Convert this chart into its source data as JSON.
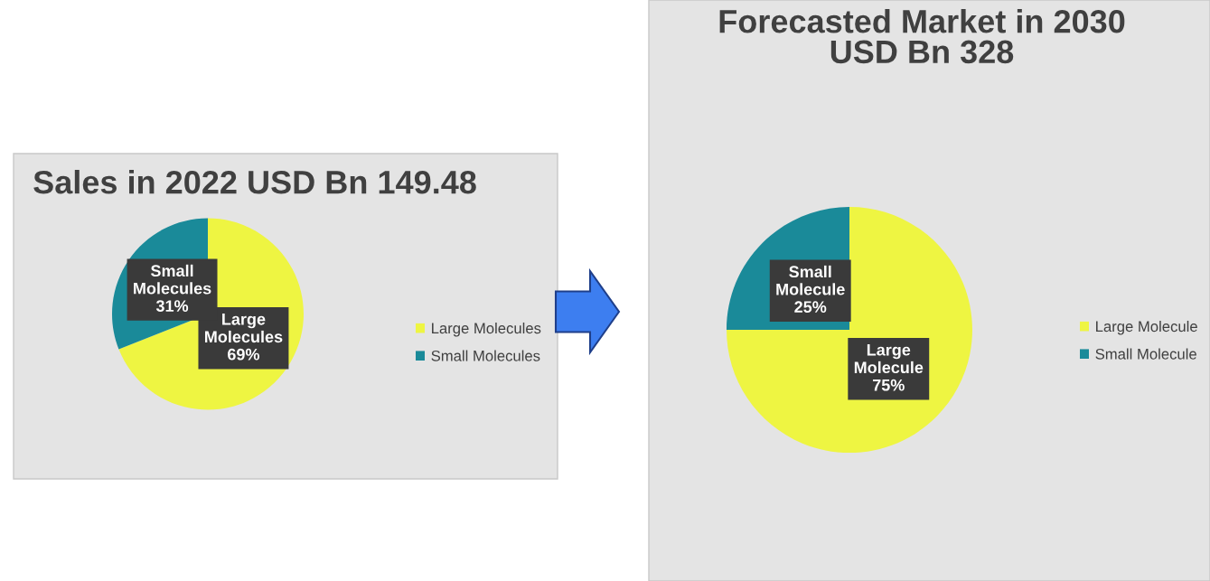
{
  "chart_data": [
    {
      "type": "pie",
      "title": "Sales in 2022 USD Bn 149.48",
      "categories": [
        "Large Molecules",
        "Small Molecules"
      ],
      "values": [
        69,
        31
      ],
      "colors": [
        "#eef542",
        "#1a8a99"
      ],
      "value_labels": [
        "69%",
        "31%"
      ],
      "legend": "right"
    },
    {
      "type": "pie",
      "title": "Forecasted Market in 2030\nUSD Bn 328",
      "categories": [
        "Large Molecule",
        "Small Molecule"
      ],
      "values": [
        75,
        25
      ],
      "colors": [
        "#eef542",
        "#1a8a99"
      ],
      "value_labels": [
        "75%",
        "25%"
      ],
      "legend": "right"
    }
  ]
}
